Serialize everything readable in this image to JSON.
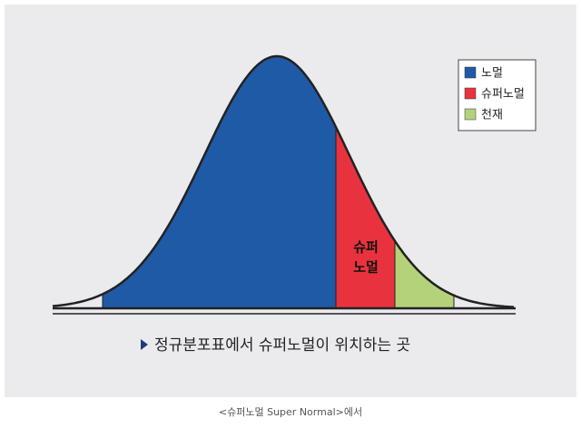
{
  "legend": {
    "items": [
      {
        "label": "노멀",
        "color": "#1f5aa6"
      },
      {
        "label": "슈퍼노멀",
        "color": "#e8333f"
      },
      {
        "label": "천재",
        "color": "#b4d27a"
      }
    ]
  },
  "region_label": [
    "슈퍼",
    "노멀"
  ],
  "figure_caption": "정규분포표에서 슈퍼노멀이 위치하는 곳",
  "source_caption": "<슈퍼노멀 Super Normal>에서"
}
